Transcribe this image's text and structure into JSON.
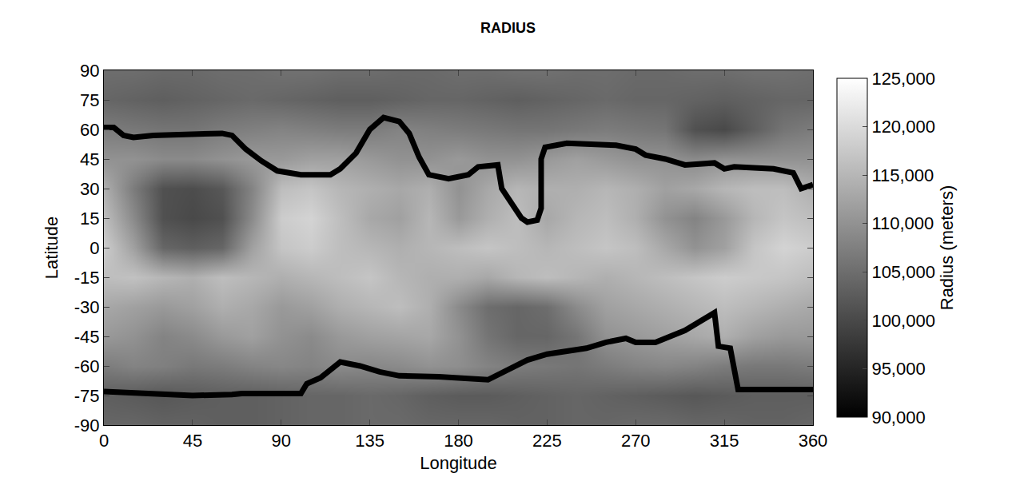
{
  "chart_data": {
    "type": "heatmap",
    "title": "RADIUS",
    "x_label": "Longitude",
    "y_label": "Latitude",
    "x": [
      0,
      15,
      30,
      45,
      60,
      75,
      90,
      105,
      120,
      135,
      150,
      165,
      180,
      195,
      210,
      225,
      240,
      255,
      270,
      285,
      300,
      315,
      330,
      345,
      360
    ],
    "y": [
      -90,
      -75,
      -60,
      -45,
      -30,
      -15,
      0,
      15,
      30,
      45,
      60,
      75,
      90
    ],
    "z": [
      [
        104000,
        104000,
        103500,
        103500,
        103000,
        103000,
        103500,
        104000,
        104000,
        104500,
        104500,
        104000,
        104000,
        104000,
        103500,
        103500,
        104000,
        104000,
        104500,
        104500,
        104000,
        104000,
        103500,
        103500,
        104000
      ],
      [
        103000,
        102500,
        102000,
        102500,
        103000,
        103000,
        103500,
        104000,
        104000,
        104500,
        104000,
        103000,
        102500,
        102500,
        103000,
        103500,
        104000,
        103500,
        103000,
        102500,
        102000,
        102500,
        103000,
        103000,
        103000
      ],
      [
        107000,
        108000,
        107500,
        106500,
        107000,
        108000,
        108500,
        108000,
        109000,
        108500,
        109000,
        110000,
        109500,
        108000,
        107000,
        106500,
        106000,
        107000,
        108000,
        108500,
        108000,
        107000,
        106500,
        106500,
        107000
      ],
      [
        111000,
        110000,
        108000,
        109000,
        111000,
        112000,
        110000,
        109000,
        111000,
        112000,
        112500,
        113000,
        110000,
        106000,
        104000,
        104000,
        106000,
        110000,
        111000,
        112000,
        113000,
        114000,
        112000,
        111000,
        111000
      ],
      [
        113000,
        112000,
        111000,
        112000,
        114000,
        113000,
        111000,
        112000,
        114000,
        115000,
        116000,
        114000,
        109000,
        105000,
        104000,
        105000,
        109000,
        112000,
        113000,
        114000,
        115000,
        116000,
        115000,
        114000,
        113000
      ],
      [
        116000,
        116500,
        115000,
        114000,
        116000,
        115000,
        114000,
        115000,
        116000,
        117000,
        115000,
        114000,
        114000,
        113000,
        115000,
        116000,
        115000,
        114000,
        115000,
        116000,
        117000,
        118000,
        117500,
        117000,
        116000
      ],
      [
        118000,
        112000,
        104000,
        103000,
        104000,
        112000,
        117000,
        118000,
        116000,
        115000,
        114000,
        115000,
        116000,
        117000,
        116000,
        115000,
        116000,
        117000,
        116000,
        113000,
        110000,
        112000,
        117000,
        119000,
        118000
      ],
      [
        116000,
        109000,
        101000,
        100000,
        101000,
        109000,
        118000,
        119000,
        116000,
        113000,
        112000,
        115000,
        111000,
        114000,
        116000,
        113000,
        115000,
        116000,
        114000,
        110000,
        108000,
        111000,
        115000,
        117000,
        116000
      ],
      [
        114000,
        107000,
        101000,
        100500,
        102000,
        108000,
        116000,
        117000,
        115000,
        114000,
        113000,
        114000,
        110000,
        113000,
        115000,
        114000,
        114000,
        115000,
        114000,
        112000,
        113000,
        115000,
        116000,
        116000,
        114000
      ],
      [
        110000,
        110000,
        109000,
        109000,
        110000,
        111000,
        111000,
        112000,
        112000,
        111000,
        110000,
        110000,
        111000,
        110000,
        110000,
        111000,
        112000,
        111000,
        110000,
        110000,
        109000,
        110000,
        110000,
        110000,
        110000
      ],
      [
        107000,
        106500,
        106000,
        106000,
        107000,
        107500,
        108000,
        107500,
        107000,
        107000,
        108000,
        107500,
        107000,
        106500,
        106000,
        106000,
        106500,
        107000,
        106500,
        106000,
        101000,
        100000,
        103000,
        106000,
        107000
      ],
      [
        104000,
        103500,
        103000,
        103500,
        104000,
        104500,
        104000,
        103500,
        103000,
        103000,
        103500,
        104000,
        104000,
        103500,
        103000,
        103500,
        104000,
        104500,
        104000,
        104000,
        103500,
        103000,
        103500,
        104000,
        104000
      ],
      [
        105000,
        105000,
        104500,
        104500,
        105000,
        105000,
        105500,
        105500,
        105000,
        105000,
        104500,
        104500,
        105000,
        105000,
        105500,
        105500,
        105000,
        105000,
        104500,
        104500,
        105000,
        105000,
        105500,
        105500,
        105000
      ]
    ],
    "colorbar": {
      "title": "Radius (meters)",
      "range": [
        90000,
        125000
      ],
      "ticks": [
        {
          "value": 90000,
          "label": "90,000"
        },
        {
          "value": 95000,
          "label": "95,000"
        },
        {
          "value": 100000,
          "label": "100,000"
        },
        {
          "value": 105000,
          "label": "105,000"
        },
        {
          "value": 110000,
          "label": "110,000"
        },
        {
          "value": 115000,
          "label": "115,000"
        },
        {
          "value": 120000,
          "label": "120,000"
        },
        {
          "value": 125000,
          "label": "125,000"
        }
      ]
    },
    "series": [
      {
        "type": "line",
        "color": "#000000",
        "x": [
          0,
          5,
          10,
          15,
          25,
          45,
          60,
          65,
          72,
          80,
          88,
          100,
          115,
          120,
          128,
          135,
          142,
          150,
          155,
          160,
          165,
          175,
          185,
          190,
          200,
          202,
          207,
          212,
          215,
          220,
          222,
          222,
          224,
          235,
          260,
          270,
          275,
          285,
          295,
          310,
          315,
          320,
          340,
          350,
          354,
          360
        ],
        "y": [
          61,
          61,
          57,
          56,
          57,
          57.5,
          58,
          57,
          50,
          44,
          39,
          37,
          37,
          40,
          48,
          60,
          66,
          64,
          58,
          46,
          37,
          35,
          37,
          41,
          42,
          30,
          22,
          15,
          13,
          14,
          20,
          45,
          51,
          53,
          52,
          50,
          47,
          45,
          42,
          43,
          40,
          41,
          40,
          38,
          30,
          32
        ]
      },
      {
        "type": "line",
        "color": "#000000",
        "x": [
          0,
          45,
          65,
          70,
          100,
          103,
          110,
          120,
          130,
          140,
          150,
          170,
          195,
          205,
          215,
          225,
          245,
          255,
          265,
          270,
          280,
          295,
          305,
          310,
          312,
          318,
          322,
          330,
          360
        ],
        "y": [
          -73,
          -75,
          -74.5,
          -74,
          -74,
          -69,
          -66,
          -58,
          -60,
          -63,
          -65,
          -65.5,
          -67,
          -62,
          -57,
          -54,
          -51,
          -48,
          -46,
          -48,
          -48,
          -42,
          -36,
          -33,
          -50,
          -51,
          -72,
          -72,
          -72
        ]
      }
    ],
    "xlim": [
      0,
      360
    ],
    "xticks": [
      0,
      45,
      90,
      135,
      180,
      225,
      270,
      315,
      360
    ],
    "ylim": [
      -90,
      90
    ],
    "yticks": [
      90,
      75,
      60,
      45,
      30,
      15,
      0,
      -15,
      -30,
      -45,
      -60,
      -75,
      -90
    ],
    "grid": false
  }
}
